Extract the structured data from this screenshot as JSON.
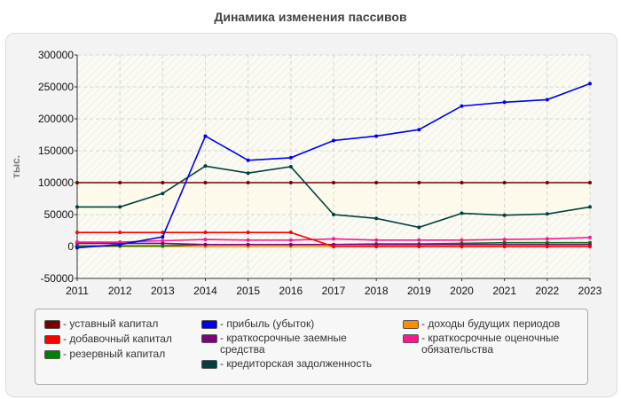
{
  "title": "Динамика изменения пассивов",
  "chart_data": {
    "type": "line",
    "ylabel": "тыс.",
    "xlabel": "",
    "ylim": [
      -50000,
      300000
    ],
    "yticks": [
      -50000,
      0,
      50000,
      100000,
      150000,
      200000,
      250000,
      300000
    ],
    "grid": true,
    "legend_placement": "bottom",
    "x": [
      2011,
      2012,
      2013,
      2014,
      2015,
      2016,
      2017,
      2018,
      2019,
      2020,
      2021,
      2022,
      2023
    ],
    "series": [
      {
        "name": "- уставный капитал",
        "color": "#7a0000",
        "values": [
          100000,
          100000,
          100000,
          100000,
          100000,
          100000,
          100000,
          100000,
          100000,
          100000,
          100000,
          100000,
          100000
        ]
      },
      {
        "name": "- добавочный капитал",
        "color": "#ff0000",
        "values": [
          22000,
          22000,
          22000,
          22000,
          22000,
          22000,
          0,
          0,
          0,
          0,
          0,
          0,
          0
        ]
      },
      {
        "name": "- резервный капитал",
        "color": "#008000",
        "values": [
          1000,
          1000,
          1000,
          3000,
          3000,
          3000,
          3000,
          4000,
          4000,
          5000,
          6000,
          6000,
          6000
        ]
      },
      {
        "name": "- прибыль (убыток)",
        "color": "#0000ee",
        "values": [
          -2000,
          3000,
          15000,
          173000,
          135000,
          139000,
          166000,
          173000,
          183000,
          220000,
          226000,
          230000,
          255000
        ]
      },
      {
        "name": "- краткосрочные заемные средства",
        "color": "#800080",
        "values": [
          5000,
          5000,
          5000,
          3000,
          3000,
          3000,
          3000,
          3000,
          3000,
          3000,
          3000,
          3000,
          3000
        ]
      },
      {
        "name": "- кредиторская задолженность",
        "color": "#004040",
        "values": [
          62000,
          62000,
          83000,
          126000,
          115000,
          125000,
          50000,
          44000,
          30000,
          52000,
          49000,
          51000,
          62000
        ]
      },
      {
        "name": "- доходы будущих периодов",
        "color": "#ff8c00",
        "values": [
          0,
          0,
          0,
          0,
          0,
          0,
          0,
          0,
          0,
          0,
          0,
          0,
          0
        ]
      },
      {
        "name": "- краткосрочные оценочные обязательства",
        "color": "#ff1493",
        "values": [
          7000,
          7000,
          9000,
          11000,
          10000,
          10000,
          12000,
          10000,
          10000,
          10000,
          11000,
          12000,
          14000
        ]
      }
    ]
  }
}
